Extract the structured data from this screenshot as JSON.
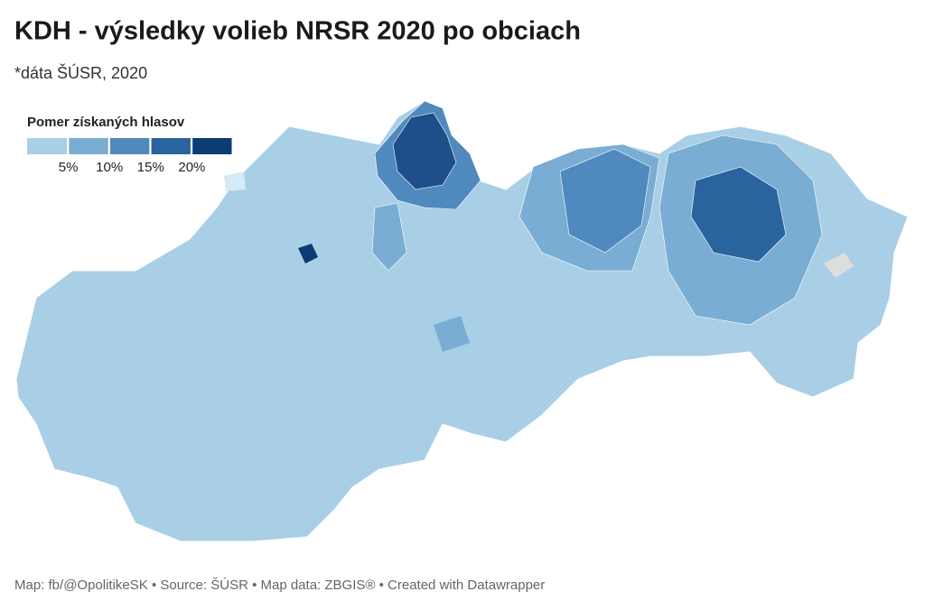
{
  "title": "KDH - výsledky volieb NRSR 2020 po obciach",
  "subtitle": "*dáta ŠÚSR, 2020",
  "legend": {
    "title": "Pomer získaných hlasov",
    "colors": [
      "#a8cfe6",
      "#7aadd3",
      "#4f89bd",
      "#2a649e",
      "#0b3c74"
    ],
    "ticks": [
      {
        "value": 5,
        "label": "5%"
      },
      {
        "value": 10,
        "label": "10%"
      },
      {
        "value": 15,
        "label": "15%"
      },
      {
        "value": 20,
        "label": "20%"
      }
    ]
  },
  "footer": "Map: fb/@OpolitikeSK • Source: ŠÚSR • Map data: ZBGIS® • Created with Datawrapper"
}
